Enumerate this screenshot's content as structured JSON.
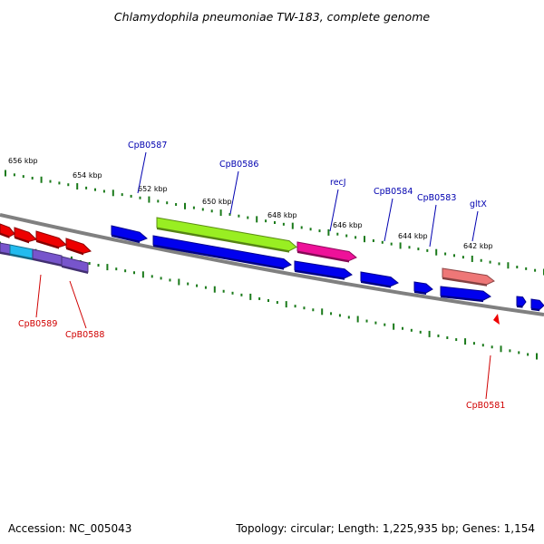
{
  "title": "Chlamydophila pneumoniae TW-183, complete genome",
  "footer": {
    "accession": "Accession: NC_005043",
    "summary": "Topology: circular; Length: 1,225,935 bp; Genes: 1,154"
  },
  "colors": {
    "backbone": "#808080",
    "tick": "#1a7a1a",
    "forward_label": "#0000b0",
    "reverse_label": "#d00000",
    "blue_gene": "#0000ee",
    "red_gene": "#ee0000",
    "green_gene": "#99ee22",
    "magenta_gene": "#ee1199",
    "salmon_gene": "#ee7777",
    "cyan_gene": "#22bbee",
    "purple_gene": "#7755cc"
  },
  "scale_labels": [
    "656 kbp",
    "654 kbp",
    "652 kbp",
    "650 kbp",
    "648 kbp",
    "646 kbp",
    "644 kbp",
    "642 kbp"
  ],
  "gene_labels_forward": [
    "CpB0587",
    "CpB0586",
    "recJ",
    "CpB0584",
    "CpB0583",
    "gltX"
  ],
  "gene_labels_reverse": [
    "CpB0589",
    "CpB0588",
    "CpB0581"
  ]
}
